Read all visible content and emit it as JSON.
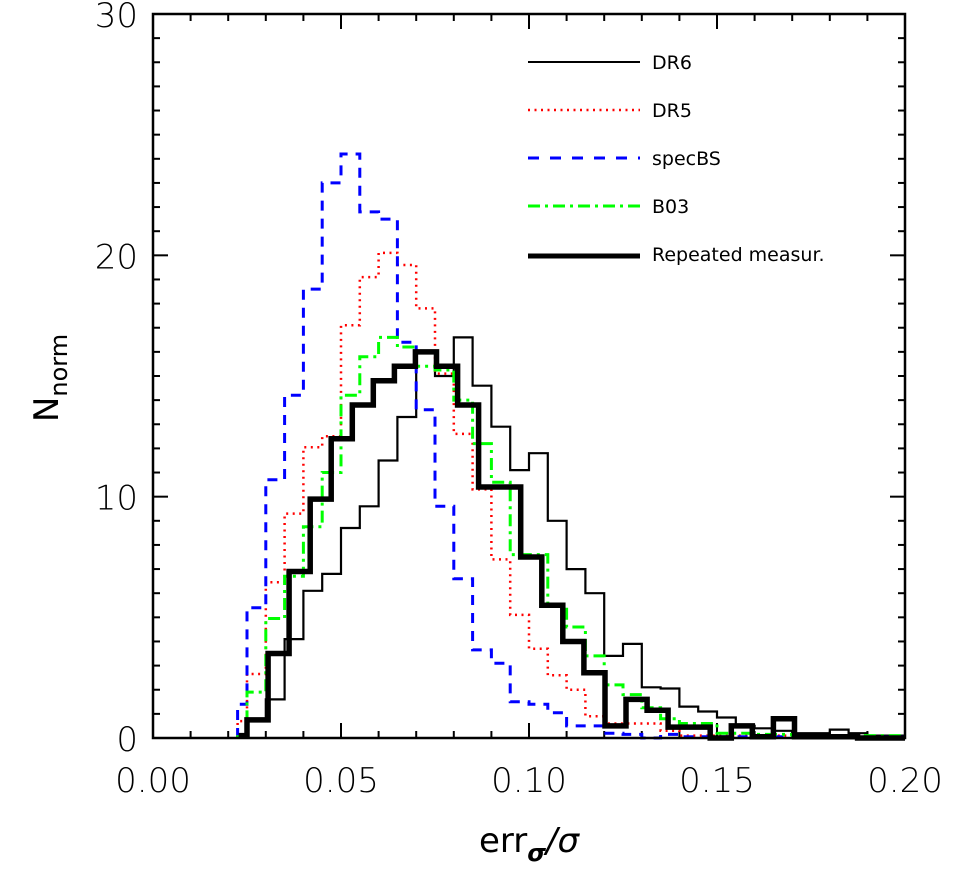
{
  "chart_data": {
    "type": "histogram",
    "title": "",
    "xlabel": "err_σ/σ",
    "xlabel_main": "err",
    "xlabel_sub": "σ",
    "xlabel_tail": "/σ",
    "ylabel": "N_norm",
    "ylabel_main": "N",
    "ylabel_sub": "norm",
    "xlim": [
      0.0,
      0.2
    ],
    "ylim": [
      0,
      30
    ],
    "xticks": [
      "0.00",
      "0.05",
      "0.10",
      "0.15",
      "0.20"
    ],
    "xtick_values": [
      0.0,
      0.05,
      0.1,
      0.15,
      0.2
    ],
    "xminor_step": 0.01,
    "yticks": [
      "0",
      "10",
      "20",
      "30"
    ],
    "ytick_values": [
      0,
      10,
      20,
      30
    ],
    "yminor_step": 1,
    "grid": false,
    "legend_position": "top-right",
    "series": [
      {
        "name": "DR6",
        "style": "solid-thin",
        "color": "#000000",
        "bin_edges": [
          0.0225,
          0.025,
          0.03,
          0.035,
          0.04,
          0.045,
          0.05,
          0.055,
          0.06,
          0.065,
          0.07,
          0.075,
          0.08,
          0.085,
          0.09,
          0.095,
          0.1,
          0.105,
          0.11,
          0.115,
          0.12,
          0.125,
          0.13,
          0.135,
          0.14,
          0.145,
          0.15,
          0.155,
          0.16,
          0.165,
          0.17,
          0.175,
          0.18,
          0.185,
          0.19,
          0.195,
          0.2
        ],
        "values": [
          0.1,
          0.8,
          1.6,
          4.1,
          6.1,
          6.8,
          8.7,
          9.6,
          11.5,
          13.3,
          16.0,
          15.0,
          16.6,
          14.6,
          12.9,
          11.1,
          11.8,
          9.0,
          7.0,
          6.0,
          3.4,
          3.9,
          2.1,
          2.05,
          1.3,
          1.1,
          0.85,
          0.5,
          0.4,
          0.3,
          0.2,
          0.2,
          0.35,
          0.2,
          0.1,
          0.1
        ]
      },
      {
        "name": "DR5",
        "style": "dotted",
        "color": "#ff0000",
        "bin_edges": [
          0.0225,
          0.025,
          0.03,
          0.035,
          0.04,
          0.045,
          0.05,
          0.055,
          0.06,
          0.065,
          0.07,
          0.075,
          0.08,
          0.085,
          0.09,
          0.095,
          0.1,
          0.105,
          0.11,
          0.115,
          0.12,
          0.125,
          0.13,
          0.135,
          0.14,
          0.145,
          0.15,
          0.155,
          0.16,
          0.165,
          0.17,
          0.175,
          0.18,
          0.185,
          0.19,
          0.195,
          0.2
        ],
        "values": [
          0.7,
          2.65,
          6.45,
          9.3,
          12.05,
          12.5,
          17.1,
          19.1,
          20.1,
          19.6,
          17.8,
          15.1,
          12.6,
          10.3,
          7.4,
          5.1,
          3.7,
          2.6,
          2.0,
          0.9,
          0.6,
          0.6,
          0.6,
          0.3,
          0.1,
          0.1,
          0.1,
          0.1,
          0.1,
          0.1,
          0.1,
          0.05,
          0.05,
          0.05,
          0.05,
          0.05
        ]
      },
      {
        "name": "specBS",
        "style": "dashed",
        "color": "#0000ff",
        "bin_edges": [
          0.0225,
          0.025,
          0.03,
          0.035,
          0.04,
          0.045,
          0.05,
          0.055,
          0.06,
          0.065,
          0.07,
          0.075,
          0.08,
          0.085,
          0.09,
          0.095,
          0.1,
          0.105,
          0.11,
          0.115,
          0.12,
          0.125,
          0.13,
          0.135,
          0.14,
          0.145,
          0.15,
          0.155,
          0.16,
          0.165,
          0.17,
          0.175,
          0.18,
          0.185,
          0.19,
          0.195,
          0.2
        ],
        "values": [
          1.4,
          5.4,
          10.7,
          14.2,
          18.6,
          23.0,
          24.2,
          21.8,
          21.5,
          16.4,
          13.6,
          9.6,
          6.6,
          3.65,
          3.1,
          1.5,
          1.4,
          1.05,
          0.5,
          0.5,
          0.2,
          0.15,
          0.0,
          0.15,
          0.05,
          0.05,
          0.05,
          0.05,
          0.05,
          0.05,
          0.05,
          0.05,
          0.05,
          0.05,
          0.05,
          0.05
        ]
      },
      {
        "name": "B03",
        "style": "dash-dot",
        "color": "#00ff00",
        "bin_edges": [
          0.0225,
          0.025,
          0.03,
          0.035,
          0.04,
          0.045,
          0.05,
          0.055,
          0.06,
          0.065,
          0.07,
          0.075,
          0.08,
          0.085,
          0.09,
          0.095,
          0.1,
          0.105,
          0.11,
          0.115,
          0.12,
          0.125,
          0.13,
          0.135,
          0.14,
          0.145,
          0.15,
          0.155,
          0.16,
          0.165,
          0.17,
          0.175,
          0.18,
          0.185,
          0.19,
          0.195,
          0.2
        ],
        "values": [
          0.05,
          1.9,
          4.95,
          6.7,
          8.75,
          11.0,
          14.2,
          15.8,
          16.6,
          16.2,
          15.4,
          15.25,
          14.0,
          12.2,
          10.6,
          7.6,
          7.6,
          5.5,
          4.6,
          3.4,
          2.2,
          1.8,
          1.25,
          0.8,
          0.6,
          0.6,
          0.2,
          0.2,
          0.15,
          0.15,
          0.1,
          0.1,
          0.1,
          0.1,
          0.1,
          0.1
        ]
      },
      {
        "name": "Repeated measur.",
        "style": "solid-thick",
        "color": "#000000",
        "bin_edges": [
          0.0235,
          0.025,
          0.0306,
          0.0362,
          0.0418,
          0.0474,
          0.053,
          0.0586,
          0.0642,
          0.0698,
          0.0754,
          0.081,
          0.0866,
          0.0922,
          0.0978,
          0.1034,
          0.109,
          0.1146,
          0.1202,
          0.1258,
          0.1314,
          0.137,
          0.1426,
          0.1482,
          0.1538,
          0.1594,
          0.165,
          0.1706,
          0.1762,
          0.1818,
          0.1874,
          0.193,
          0.2
        ],
        "values": [
          0.1,
          0.75,
          3.5,
          6.9,
          9.9,
          12.4,
          13.8,
          14.8,
          15.4,
          16.0,
          15.4,
          13.8,
          10.4,
          10.4,
          7.5,
          5.5,
          4.0,
          2.7,
          0.5,
          1.6,
          1.15,
          0.45,
          0.45,
          0.0,
          0.5,
          0.05,
          0.8,
          0.05,
          0.05,
          0.05,
          0.0,
          0.0
        ]
      }
    ]
  },
  "legend": {
    "items": [
      {
        "label": "DR6",
        "style": "solid-thin",
        "color": "#000000"
      },
      {
        "label": "DR5",
        "style": "dotted",
        "color": "#ff0000"
      },
      {
        "label": "specBS",
        "style": "dashed",
        "color": "#0000ff"
      },
      {
        "label": "B03",
        "style": "dash-dot",
        "color": "#00ff00"
      },
      {
        "label": "Repeated measur.",
        "style": "solid-thick",
        "color": "#000000"
      }
    ]
  }
}
